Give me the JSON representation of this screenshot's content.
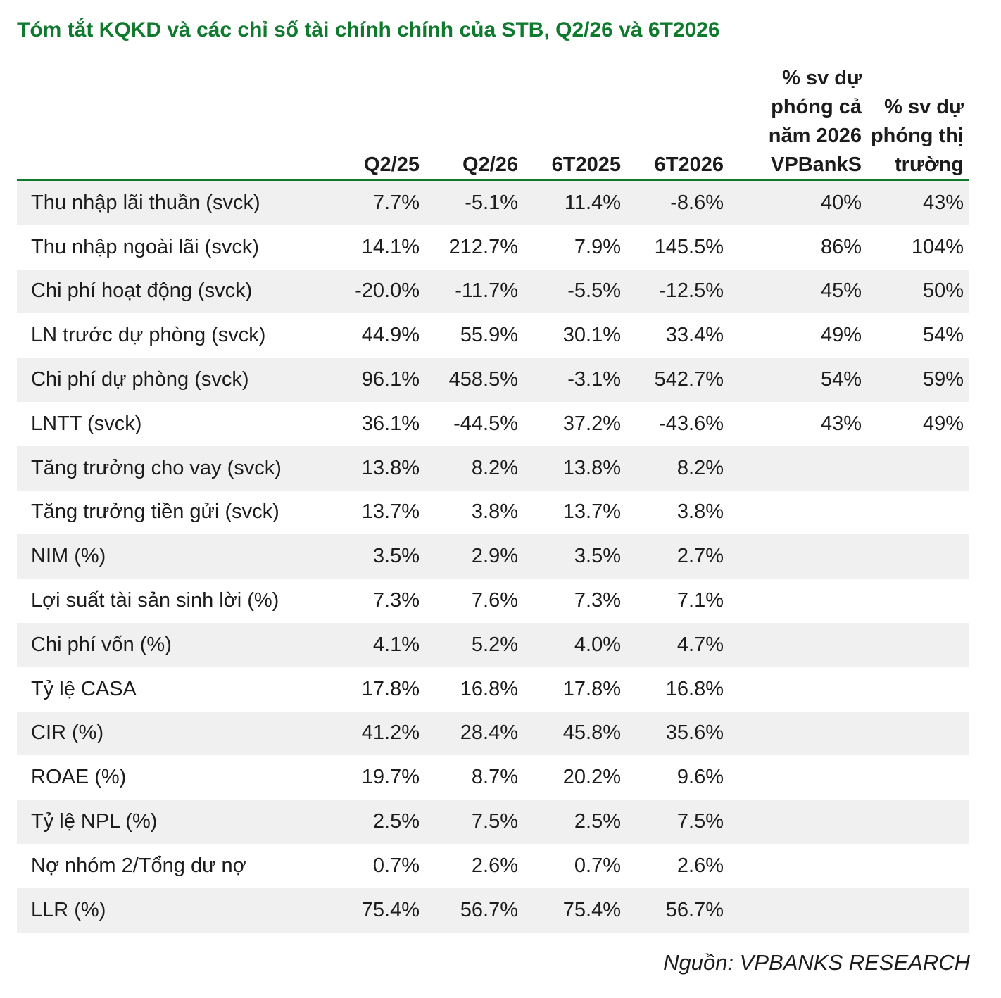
{
  "title": "Tóm tắt KQKD và các chỉ số tài chính chính của STB, Q2/26 và 6T2026",
  "columns": [
    "",
    "Q2/25",
    "Q2/26",
    "6T2025",
    "6T2026",
    "% sv dự phóng cả năm 2026 VPBankS",
    "% sv dự phóng thị trường"
  ],
  "rows": [
    {
      "label": "Thu nhập lãi thuần (svck)",
      "values": [
        "7.7%",
        "-5.1%",
        "11.4%",
        "-8.6%",
        "40%",
        "43%"
      ]
    },
    {
      "label": "Thu nhập ngoài lãi (svck)",
      "values": [
        "14.1%",
        "212.7%",
        "7.9%",
        "145.5%",
        "86%",
        "104%"
      ]
    },
    {
      "label": "Chi phí hoạt động (svck)",
      "values": [
        "-20.0%",
        "-11.7%",
        "-5.5%",
        "-12.5%",
        "45%",
        "50%"
      ]
    },
    {
      "label": "LN trước dự phòng (svck)",
      "values": [
        "44.9%",
        "55.9%",
        "30.1%",
        "33.4%",
        "49%",
        "54%"
      ]
    },
    {
      "label": "Chi phí dự phòng (svck)",
      "values": [
        "96.1%",
        "458.5%",
        "-3.1%",
        "542.7%",
        "54%",
        "59%"
      ]
    },
    {
      "label": "LNTT (svck)",
      "values": [
        "36.1%",
        "-44.5%",
        "37.2%",
        "-43.6%",
        "43%",
        "49%"
      ]
    },
    {
      "label": "Tăng trưởng cho vay (svck)",
      "values": [
        "13.8%",
        "8.2%",
        "13.8%",
        "8.2%",
        "",
        ""
      ]
    },
    {
      "label": "Tăng trưởng tiền gửi (svck)",
      "values": [
        "13.7%",
        "3.8%",
        "13.7%",
        "3.8%",
        "",
        ""
      ]
    },
    {
      "label": "NIM (%)",
      "values": [
        "3.5%",
        "2.9%",
        "3.5%",
        "2.7%",
        "",
        ""
      ]
    },
    {
      "label": "Lợi suất tài sản sinh lời (%)",
      "values": [
        "7.3%",
        "7.6%",
        "7.3%",
        "7.1%",
        "",
        ""
      ]
    },
    {
      "label": "Chi phí vốn (%)",
      "values": [
        "4.1%",
        "5.2%",
        "4.0%",
        "4.7%",
        "",
        ""
      ]
    },
    {
      "label": "Tỷ lệ CASA",
      "values": [
        "17.8%",
        "16.8%",
        "17.8%",
        "16.8%",
        "",
        ""
      ]
    },
    {
      "label": "CIR (%)",
      "values": [
        "41.2%",
        "28.4%",
        "45.8%",
        "35.6%",
        "",
        ""
      ]
    },
    {
      "label": "ROAE (%)",
      "values": [
        "19.7%",
        "8.7%",
        "20.2%",
        "9.6%",
        "",
        ""
      ]
    },
    {
      "label": "Tỷ lệ NPL (%)",
      "values": [
        "2.5%",
        "7.5%",
        "2.5%",
        "7.5%",
        "",
        ""
      ]
    },
    {
      "label": "Nợ nhóm 2/Tổng dư nợ",
      "values": [
        "0.7%",
        "2.6%",
        "0.7%",
        "2.6%",
        "",
        ""
      ]
    },
    {
      "label": "LLR (%)",
      "values": [
        "75.4%",
        "56.7%",
        "75.4%",
        "56.7%",
        "",
        ""
      ]
    }
  ],
  "source": "Nguồn: VPBANKS RESEARCH",
  "colors": {
    "accent": "#0f7a2e",
    "stripe": "#f0f0f0"
  }
}
